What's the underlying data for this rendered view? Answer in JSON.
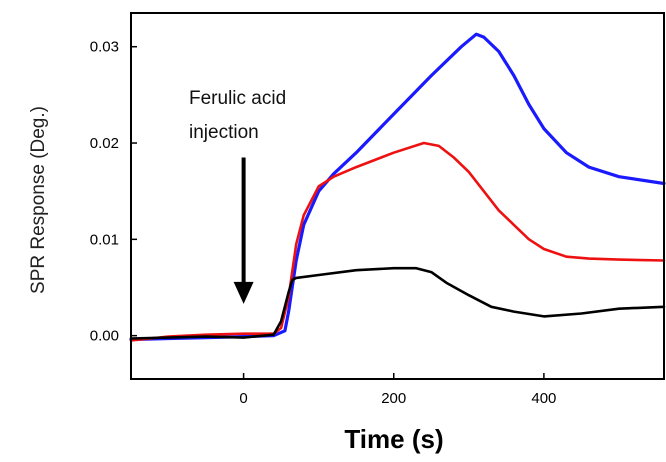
{
  "chart_data": {
    "type": "line",
    "title": "",
    "xlabel": "Time (s)",
    "ylabel": "SPR Response (Deg.)",
    "xlim": [
      -150,
      560
    ],
    "ylim": [
      -0.0045,
      0.0335
    ],
    "x_ticks": [
      0,
      200,
      400
    ],
    "x_tick_labels": [
      "0",
      "200",
      "400"
    ],
    "y_ticks": [
      0.0,
      0.01,
      0.02,
      0.03
    ],
    "y_tick_labels": [
      "0.00",
      "0.01",
      "0.02",
      "0.03"
    ],
    "grid": false,
    "legend": "none",
    "annotation": {
      "lines": [
        "Ferulic acid",
        "injection"
      ],
      "arrow_x": 0,
      "arrow_y_from": 0.0185,
      "arrow_y_to": 0.0033
    },
    "series": [
      {
        "color": "#1a1aff",
        "x": [
          -150,
          -100,
          -50,
          0,
          40,
          55,
          60,
          70,
          80,
          100,
          120,
          150,
          200,
          250,
          290,
          310,
          320,
          340,
          360,
          380,
          400,
          430,
          460,
          500,
          560
        ],
        "y": [
          -0.0004,
          -0.0003,
          -0.0002,
          -0.0001,
          0.0,
          0.0005,
          0.0025,
          0.0078,
          0.0115,
          0.015,
          0.0168,
          0.019,
          0.023,
          0.027,
          0.03,
          0.0313,
          0.031,
          0.0295,
          0.027,
          0.024,
          0.0215,
          0.019,
          0.0175,
          0.0165,
          0.0158
        ]
      },
      {
        "color": "#ee1111",
        "x": [
          -150,
          -100,
          -50,
          0,
          40,
          50,
          60,
          70,
          80,
          100,
          120,
          150,
          200,
          240,
          260,
          280,
          300,
          320,
          340,
          360,
          380,
          400,
          430,
          460,
          500,
          560
        ],
        "y": [
          -0.0005,
          -0.0001,
          0.0001,
          0.0002,
          0.0002,
          0.0008,
          0.004,
          0.0095,
          0.0125,
          0.0155,
          0.0165,
          0.0175,
          0.019,
          0.02,
          0.0197,
          0.0185,
          0.017,
          0.015,
          0.013,
          0.0115,
          0.01,
          0.009,
          0.0082,
          0.008,
          0.0079,
          0.0078
        ]
      },
      {
        "color": "#000000",
        "x": [
          -150,
          -100,
          -50,
          0,
          40,
          50,
          60,
          65,
          70,
          100,
          150,
          200,
          230,
          250,
          270,
          300,
          330,
          360,
          400,
          450,
          500,
          560
        ],
        "y": [
          -0.0003,
          -0.0002,
          -0.0001,
          -0.0002,
          0.0001,
          0.0015,
          0.0045,
          0.0058,
          0.006,
          0.0063,
          0.0068,
          0.007,
          0.007,
          0.0066,
          0.0055,
          0.0042,
          0.003,
          0.0025,
          0.002,
          0.0023,
          0.0028,
          0.003
        ]
      }
    ]
  }
}
